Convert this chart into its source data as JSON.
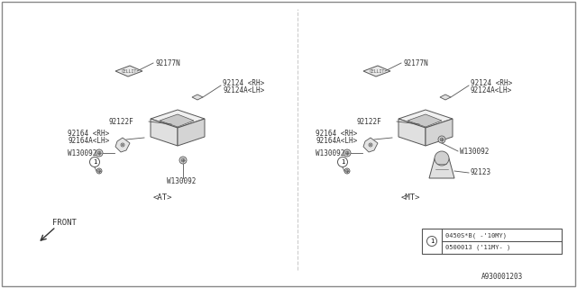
{
  "title": "",
  "bg_color": "#ffffff",
  "border_color": "#000000",
  "line_color": "#555555",
  "fig_width": 6.4,
  "fig_height": 3.2,
  "dpi": 100,
  "diagram_id": "A930001203",
  "at_label": "<AT>",
  "mt_label": "<MT>",
  "front_label": "FRONT",
  "note_lines": [
    "0450S*B( -'10MY)",
    "0500013 ('11MY- )"
  ],
  "parts": {
    "92177N": "92177N",
    "92124RH": "92124 <RH>",
    "92124ALH": "92124A<LH>",
    "92122F": "92122F",
    "92164RH": "92164 <RH>",
    "92164ALH": "92164A<LH>",
    "W130092": "W130092",
    "92123": "92123"
  },
  "text_color": "#333333",
  "font_size": 5.5,
  "small_font_size": 5.0
}
